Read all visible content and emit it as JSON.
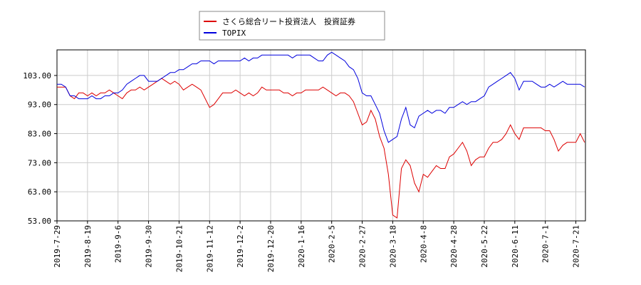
{
  "chart_data": {
    "type": "line",
    "categories": [
      "2019-7-29",
      null,
      null,
      null,
      null,
      null,
      null,
      "2019-8-19",
      null,
      null,
      null,
      null,
      null,
      null,
      "2019-9-6",
      null,
      null,
      null,
      null,
      null,
      null,
      "2019-9-30",
      null,
      null,
      null,
      null,
      null,
      null,
      "2019-10-21",
      null,
      null,
      null,
      null,
      null,
      null,
      "2019-11-12",
      null,
      null,
      null,
      null,
      null,
      null,
      "2019-12-2",
      null,
      null,
      null,
      null,
      null,
      null,
      "2019-12-20",
      null,
      null,
      null,
      null,
      null,
      null,
      "2020-1-16",
      null,
      null,
      null,
      null,
      null,
      null,
      "2020-2-5",
      null,
      null,
      null,
      null,
      null,
      null,
      "2020-2-27",
      null,
      null,
      null,
      null,
      null,
      null,
      "2020-3-18",
      null,
      null,
      null,
      null,
      null,
      null,
      "2020-4-8",
      null,
      null,
      null,
      null,
      null,
      null,
      "2020-4-28",
      null,
      null,
      null,
      null,
      null,
      null,
      "2020-5-22",
      null,
      null,
      null,
      null,
      null,
      null,
      "2020-6-11",
      null,
      null,
      null,
      null,
      null,
      null,
      "2020-7-1",
      null,
      null,
      null,
      null,
      null,
      null,
      "2020-7-21",
      null,
      null
    ],
    "series": [
      {
        "name": "さくら総合リート投資法人　投資証券",
        "color": "#dd0000",
        "values": [
          99,
          99,
          99,
          96,
          95,
          97,
          97,
          96,
          97,
          96,
          97,
          97,
          98,
          97,
          96,
          95,
          97,
          98,
          98,
          99,
          98,
          99,
          100,
          101,
          102,
          101,
          100,
          101,
          100,
          98,
          99,
          100,
          99,
          98,
          95,
          92,
          93,
          95,
          97,
          97,
          97,
          98,
          97,
          96,
          97,
          96,
          97,
          99,
          98,
          98,
          98,
          98,
          97,
          97,
          96,
          97,
          97,
          98,
          98,
          98,
          98,
          99,
          98,
          97,
          96,
          97,
          97,
          96,
          94,
          90,
          86,
          87,
          91,
          88,
          82,
          78,
          69,
          55,
          54,
          71,
          74,
          72,
          66,
          63,
          69,
          68,
          70,
          72,
          71,
          71,
          75,
          76,
          78,
          80,
          77,
          72,
          74,
          75,
          75,
          78,
          80,
          80,
          81,
          83,
          86,
          83,
          81,
          85,
          85,
          85,
          85,
          85,
          84,
          84,
          81,
          77,
          79,
          80,
          80,
          80,
          83,
          80
        ]
      },
      {
        "name": "TOPIX",
        "color": "#0000dd",
        "values": [
          100,
          100,
          99,
          96,
          96,
          95,
          95,
          95,
          96,
          95,
          95,
          96,
          96,
          97,
          97,
          98,
          100,
          101,
          102,
          103,
          103,
          101,
          101,
          101,
          102,
          103,
          104,
          104,
          105,
          105,
          106,
          107,
          107,
          108,
          108,
          108,
          107,
          108,
          108,
          108,
          108,
          108,
          108,
          109,
          108,
          109,
          109,
          110,
          110,
          110,
          110,
          110,
          110,
          110,
          109,
          110,
          110,
          110,
          110,
          109,
          108,
          108,
          110,
          111,
          110,
          109,
          108,
          106,
          105,
          102,
          97,
          96,
          96,
          93,
          90,
          84,
          80,
          81,
          82,
          88,
          92,
          86,
          85,
          89,
          90,
          91,
          90,
          91,
          91,
          90,
          92,
          92,
          93,
          94,
          93,
          94,
          94,
          95,
          96,
          99,
          100,
          101,
          102,
          103,
          104,
          102,
          98,
          101,
          101,
          101,
          100,
          99,
          99,
          100,
          99,
          100,
          101,
          100,
          100,
          100,
          100,
          99
        ]
      }
    ],
    "ylim": [
      53,
      111.8
    ],
    "yticks": [
      {
        "value": 53,
        "label": "53.00"
      },
      {
        "value": 63,
        "label": "63.00"
      },
      {
        "value": 73,
        "label": "73.00"
      },
      {
        "value": 83,
        "label": "83.00"
      },
      {
        "value": 93,
        "label": "93.00"
      },
      {
        "value": 103,
        "label": "103.00"
      }
    ],
    "grid": true
  }
}
